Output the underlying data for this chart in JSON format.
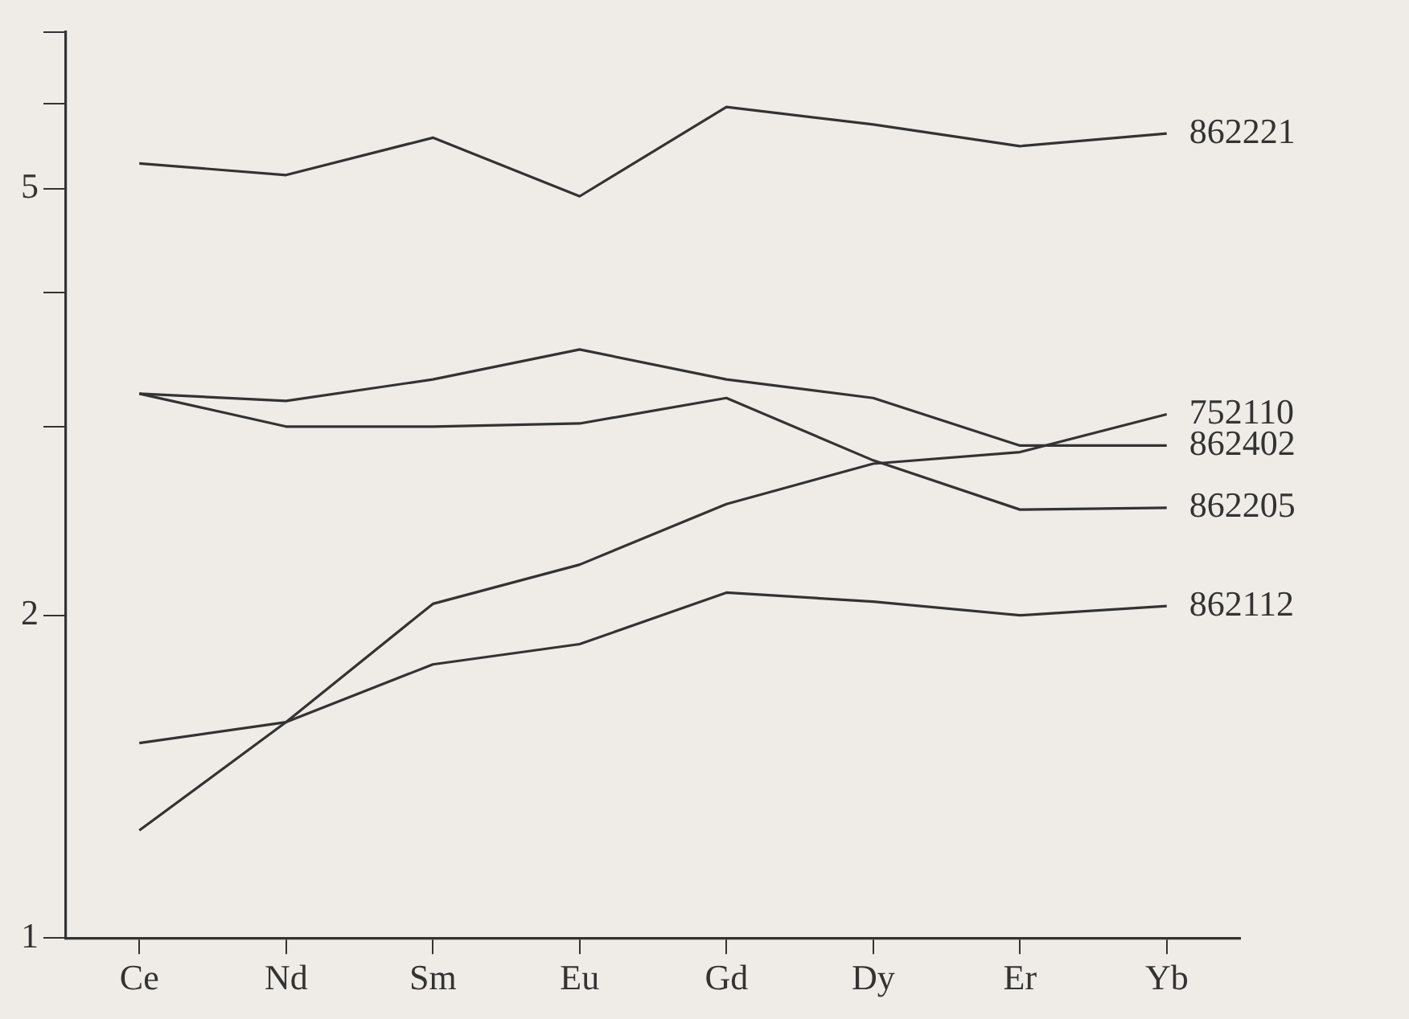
{
  "chart_data": {
    "type": "line",
    "categories": [
      "Ce",
      "Nd",
      "Sm",
      "Eu",
      "Gd",
      "Dy",
      "Er",
      "Yb"
    ],
    "series": [
      {
        "name": "862221",
        "color": "#333333",
        "values": [
          5.28,
          5.15,
          5.58,
          4.92,
          5.96,
          5.74,
          5.48,
          5.63
        ]
      },
      {
        "name": "752110",
        "color": "#333333",
        "values": [
          1.26,
          1.59,
          2.05,
          2.23,
          2.54,
          2.77,
          2.84,
          3.08
        ]
      },
      {
        "name": "862402",
        "color": "#333333",
        "values": [
          3.22,
          3.17,
          3.32,
          3.54,
          3.32,
          3.19,
          2.88,
          2.88
        ]
      },
      {
        "name": "862205",
        "color": "#333333",
        "values": [
          3.22,
          3.0,
          3.0,
          3.02,
          3.19,
          2.79,
          2.51,
          2.52
        ]
      },
      {
        "name": "862112",
        "color": "#333333",
        "values": [
          1.52,
          1.59,
          1.8,
          1.88,
          2.1,
          2.06,
          2.0,
          2.04
        ]
      }
    ],
    "log": "y",
    "ylim": [
      1,
      7
    ],
    "yticks": [
      1,
      2,
      {
        "value": 3,
        "label": null
      },
      {
        "value": 4,
        "label": null
      },
      5,
      {
        "value": 6,
        "label": null
      },
      {
        "value": 7,
        "label": null
      }
    ],
    "grid": false,
    "legend": false,
    "marker": "none",
    "line_style": "solid"
  }
}
